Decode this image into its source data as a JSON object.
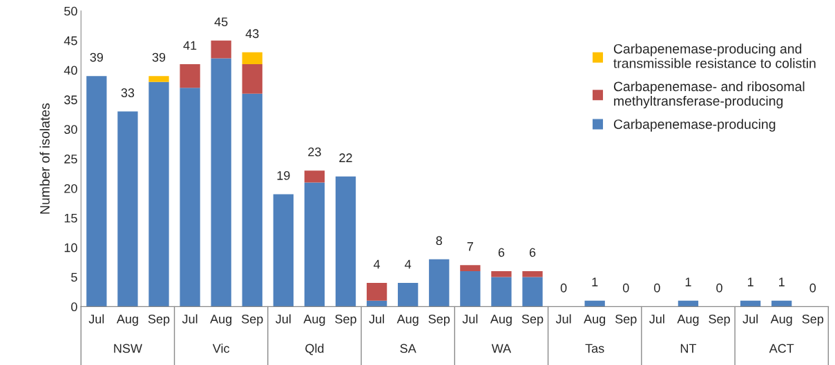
{
  "chart_data": {
    "type": "bar",
    "stacked": true,
    "ylabel": "Number of isolates",
    "categories": [
      "Jul",
      "Aug",
      "Sep",
      "Jul",
      "Aug",
      "Sep",
      "Jul",
      "Aug",
      "Sep",
      "Jul",
      "Aug",
      "Sep",
      "Jul",
      "Aug",
      "Sep",
      "Jul",
      "Aug",
      "Sep",
      "Jul",
      "Aug",
      "Sep",
      "Jul",
      "Aug",
      "Sep"
    ],
    "series": [
      {
        "name": "Carbapenemase-producing",
        "color": "#4f81bd",
        "values": [
          39,
          33,
          38,
          37,
          42,
          36,
          19,
          21,
          22,
          1,
          4,
          8,
          6,
          5,
          5,
          0,
          1,
          0,
          0,
          1,
          0,
          1,
          1,
          0
        ]
      },
      {
        "name": "Carbapenemase- and ribosomal\nmethyltransferase-producing",
        "color": "#c0504d",
        "values": [
          0,
          0,
          0,
          4,
          3,
          5,
          0,
          2,
          0,
          3,
          0,
          0,
          1,
          1,
          1,
          0,
          0,
          0,
          0,
          0,
          0,
          0,
          0,
          0
        ]
      },
      {
        "name": "Carbapenemase-producing and\ntransmissible resistance to colistin",
        "color": "#ffc000",
        "values": [
          0,
          0,
          1,
          0,
          0,
          2,
          0,
          0,
          0,
          0,
          0,
          0,
          0,
          0,
          0,
          0,
          0,
          0,
          0,
          0,
          0,
          0,
          0,
          0
        ]
      }
    ],
    "totals": [
      "39",
      "33",
      "39",
      "41",
      "45",
      "43",
      "19",
      "23",
      "22",
      "4",
      "4",
      "8",
      "7",
      "6",
      "6",
      "0",
      "1",
      "0",
      "0",
      "1",
      "0",
      "1",
      "1",
      "0"
    ],
    "annotations": [
      "NSW",
      "Vic",
      "Qld",
      "SA",
      "WA",
      "Tas",
      "NT",
      "ACT"
    ],
    "ylim": [
      0,
      50
    ],
    "yticks": [
      0,
      5,
      10,
      15,
      20,
      25,
      30,
      35,
      40,
      45,
      50
    ],
    "legend": "top right",
    "grid": false
  }
}
